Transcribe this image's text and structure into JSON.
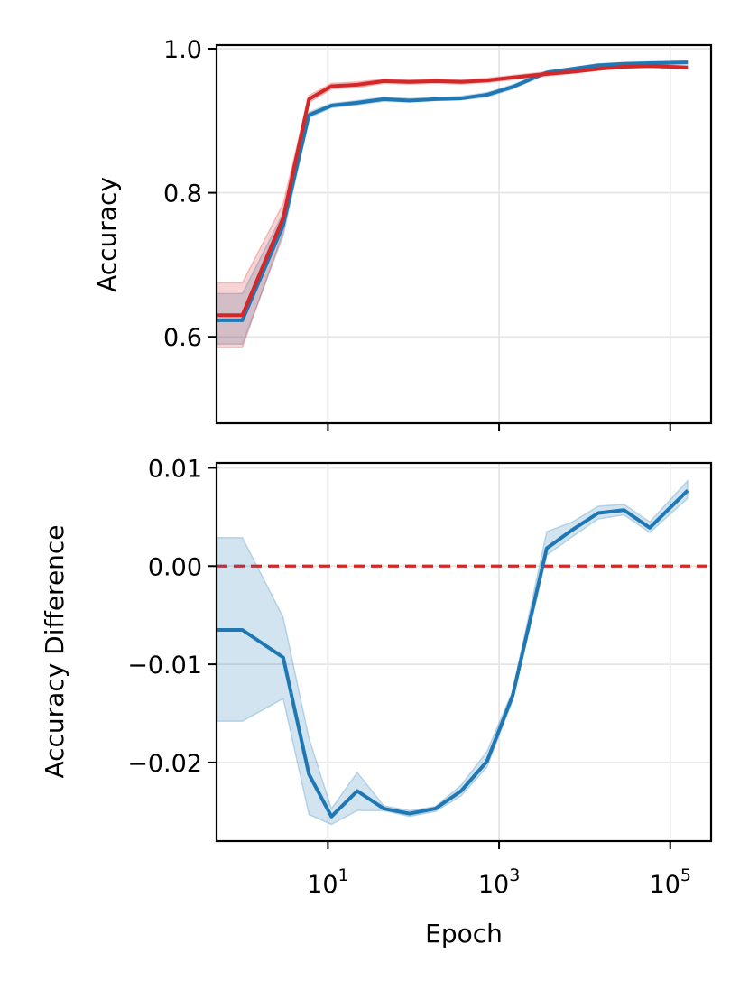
{
  "chart_data": [
    {
      "type": "line",
      "ylabel": "Accuracy",
      "xscale": "log",
      "xlim": [
        0.5,
        300000
      ],
      "ylim": [
        0.48,
        1.005
      ],
      "grid": true,
      "yticks": [
        {
          "value": 0.6,
          "label": "0.6"
        },
        {
          "value": 0.8,
          "label": "0.8"
        },
        {
          "value": 1.0,
          "label": "1.0"
        }
      ],
      "xticks": [
        10,
        1000,
        100000
      ],
      "x": [
        0.5,
        1,
        3,
        6,
        11,
        22,
        45,
        90,
        180,
        360,
        720,
        1440,
        3600,
        7200,
        14400,
        28800,
        57600,
        160000
      ],
      "series": [
        {
          "color": "#1f77b4",
          "values": [
            0.623,
            0.623,
            0.755,
            0.908,
            0.921,
            0.925,
            0.93,
            0.928,
            0.93,
            0.931,
            0.936,
            0.947,
            0.967,
            0.972,
            0.977,
            0.979,
            0.98,
            0.981
          ],
          "band_lower": [
            0.59,
            0.59,
            0.74,
            0.904,
            0.918,
            0.922,
            0.927,
            0.926,
            0.928,
            0.929,
            0.933,
            0.944,
            0.965,
            0.97,
            0.975,
            0.977,
            0.978,
            0.979
          ],
          "band_upper": [
            0.66,
            0.66,
            0.772,
            0.912,
            0.924,
            0.928,
            0.933,
            0.931,
            0.932,
            0.934,
            0.939,
            0.95,
            0.969,
            0.974,
            0.979,
            0.981,
            0.982,
            0.983
          ]
        },
        {
          "color": "#d62728",
          "values": [
            0.63,
            0.63,
            0.765,
            0.93,
            0.948,
            0.95,
            0.955,
            0.954,
            0.955,
            0.954,
            0.956,
            0.96,
            0.965,
            0.968,
            0.972,
            0.975,
            0.976,
            0.974
          ],
          "band_lower": [
            0.585,
            0.585,
            0.745,
            0.925,
            0.944,
            0.946,
            0.952,
            0.951,
            0.952,
            0.951,
            0.953,
            0.957,
            0.962,
            0.966,
            0.97,
            0.973,
            0.974,
            0.972
          ],
          "band_upper": [
            0.675,
            0.675,
            0.785,
            0.935,
            0.952,
            0.954,
            0.958,
            0.957,
            0.958,
            0.957,
            0.959,
            0.963,
            0.968,
            0.971,
            0.975,
            0.977,
            0.978,
            0.976
          ]
        }
      ]
    },
    {
      "type": "line",
      "xlabel": "Epoch",
      "ylabel": "Accuracy Difference",
      "xscale": "log",
      "xlim": [
        0.5,
        300000
      ],
      "ylim": [
        -0.028,
        0.0105
      ],
      "grid": true,
      "reference_line": {
        "y": 0.0,
        "color": "#d62728",
        "style": "dashed"
      },
      "yticks": [
        {
          "value": -0.02,
          "label": "−0.02"
        },
        {
          "value": -0.01,
          "label": "−0.01"
        },
        {
          "value": 0.0,
          "label": "0.00"
        },
        {
          "value": 0.01,
          "label": "0.01"
        }
      ],
      "xticks": [
        {
          "value": 10,
          "base": "10",
          "exponent": "1"
        },
        {
          "value": 1000,
          "base": "10",
          "exponent": "3"
        },
        {
          "value": 100000,
          "base": "10",
          "exponent": "5"
        }
      ],
      "x": [
        0.5,
        1,
        3,
        6,
        11,
        22,
        45,
        90,
        180,
        360,
        720,
        1440,
        3600,
        7200,
        14400,
        28800,
        57600,
        160000
      ],
      "series": [
        {
          "color": "#1f77b4",
          "values": [
            -0.0065,
            -0.0065,
            -0.0093,
            -0.0212,
            -0.0255,
            -0.0229,
            -0.0247,
            -0.0252,
            -0.0247,
            -0.0229,
            -0.0199,
            -0.0132,
            0.0018,
            0.0037,
            0.0054,
            0.0057,
            0.0039,
            0.0077
          ],
          "band_lower": [
            -0.0158,
            -0.0158,
            -0.0135,
            -0.0253,
            -0.0263,
            -0.0249,
            -0.0249,
            -0.0255,
            -0.025,
            -0.0234,
            -0.0205,
            -0.0137,
            0.0011,
            0.003,
            0.0048,
            0.0052,
            0.0034,
            0.0069
          ],
          "band_upper": [
            0.0029,
            0.0029,
            -0.0052,
            -0.0175,
            -0.0247,
            -0.021,
            -0.0244,
            -0.0249,
            -0.0245,
            -0.0223,
            -0.0189,
            -0.0127,
            0.0035,
            0.0045,
            0.0061,
            0.0063,
            0.0045,
            0.0087
          ]
        }
      ]
    }
  ]
}
